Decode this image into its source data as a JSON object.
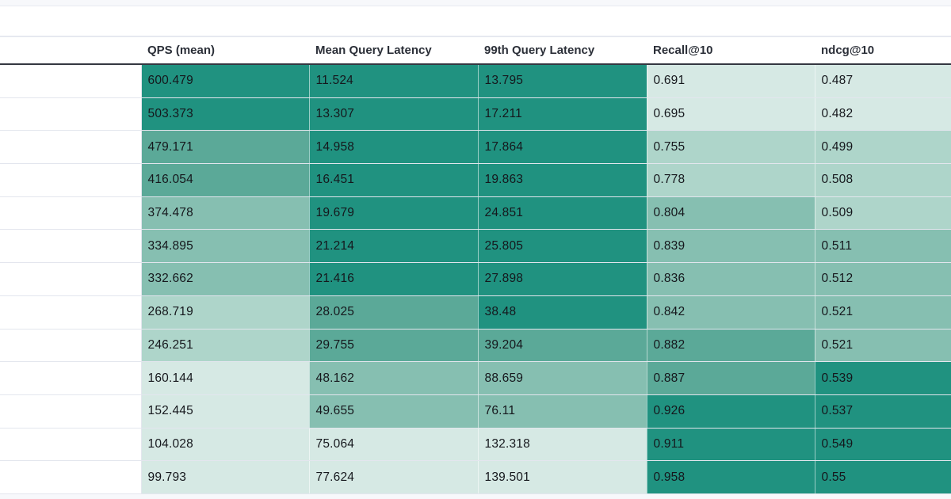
{
  "table": {
    "columns": [
      "",
      "QPS (mean)",
      "Mean Query Latency",
      "99th Query Latency",
      "Recall@10",
      "ndcg@10"
    ],
    "rows": [
      {
        "name": "",
        "qps": "600.479",
        "mean": "11.524",
        "p99": "13.795",
        "recall": "0.691",
        "ndcg": "0.487"
      },
      {
        "name": "",
        "qps": "503.373",
        "mean": "13.307",
        "p99": "17.211",
        "recall": "0.695",
        "ndcg": "0.482"
      },
      {
        "name": "",
        "qps": "479.171",
        "mean": "14.958",
        "p99": "17.864",
        "recall": "0.755",
        "ndcg": "0.499"
      },
      {
        "name": "",
        "qps": "416.054",
        "mean": "16.451",
        "p99": "19.863",
        "recall": "0.778",
        "ndcg": "0.508"
      },
      {
        "name": "",
        "qps": "374.478",
        "mean": "19.679",
        "p99": "24.851",
        "recall": "0.804",
        "ndcg": "0.509"
      },
      {
        "name": "",
        "qps": "334.895",
        "mean": "21.214",
        "p99": "25.805",
        "recall": "0.839",
        "ndcg": "0.511"
      },
      {
        "name": "",
        "qps": "332.662",
        "mean": "21.416",
        "p99": "27.898",
        "recall": "0.836",
        "ndcg": "0.512"
      },
      {
        "name": "",
        "qps": "268.719",
        "mean": "28.025",
        "p99": "38.48",
        "recall": "0.842",
        "ndcg": "0.521"
      },
      {
        "name": "",
        "qps": "246.251",
        "mean": "29.755",
        "p99": "39.204",
        "recall": "0.882",
        "ndcg": "0.521"
      },
      {
        "name": "",
        "qps": "160.144",
        "mean": "48.162",
        "p99": "88.659",
        "recall": "0.887",
        "ndcg": "0.539"
      },
      {
        "name": "",
        "qps": "152.445",
        "mean": "49.655",
        "p99": "76.11",
        "recall": "0.926",
        "ndcg": "0.537"
      },
      {
        "name": "",
        "qps": "104.028",
        "mean": "75.064",
        "p99": "132.318",
        "recall": "0.911",
        "ndcg": "0.549"
      },
      {
        "name": "",
        "qps": "99.793",
        "mean": "77.624",
        "p99": "139.501",
        "recall": "0.958",
        "ndcg": "0.55"
      }
    ],
    "shades": [
      [
        "s1",
        "s1",
        "s1",
        "s5",
        "s5"
      ],
      [
        "s1",
        "s1",
        "s1",
        "s5",
        "s5"
      ],
      [
        "s2",
        "s1",
        "s1",
        "s4",
        "s4"
      ],
      [
        "s2",
        "s1",
        "s1",
        "s4",
        "s4"
      ],
      [
        "s3",
        "s1",
        "s1",
        "s3",
        "s4"
      ],
      [
        "s3",
        "s1",
        "s1",
        "s3",
        "s3"
      ],
      [
        "s3",
        "s1",
        "s1",
        "s3",
        "s3"
      ],
      [
        "s4",
        "s2",
        "s1",
        "s3",
        "s3"
      ],
      [
        "s4",
        "s2",
        "s2",
        "s2",
        "s3"
      ],
      [
        "s5",
        "s3",
        "s3",
        "s2",
        "s1"
      ],
      [
        "s5",
        "s3",
        "s3",
        "s1",
        "s1"
      ],
      [
        "s5",
        "s5",
        "s5",
        "s1",
        "s1"
      ],
      [
        "s5",
        "s5",
        "s5",
        "s1",
        "s1"
      ]
    ]
  },
  "colors": {
    "shade_1": "#209280",
    "shade_2": "#5ba998",
    "shade_3": "#86bfb1",
    "shade_4": "#aed5ca",
    "shade_5": "#d6e9e4"
  }
}
